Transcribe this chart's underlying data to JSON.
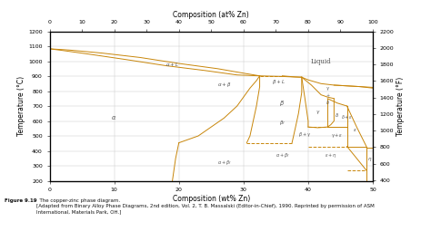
{
  "title_top": "Composition (at% Zn)",
  "xlabel": "Composition (wt% Zn)",
  "ylabel_left": "Temperature (°C)",
  "ylabel_right": "Temperature (°F)",
  "xlim": [
    0,
    50
  ],
  "ylim_C_min": 200,
  "ylim_C_max": 1200,
  "xticks_bottom": [
    0,
    10,
    20,
    30,
    40,
    50
  ],
  "xticks_top_vals": [
    0,
    5,
    10,
    15,
    20,
    25,
    30,
    35,
    40,
    45,
    50
  ],
  "xticks_top_labels": [
    "0",
    "10",
    "20",
    "30",
    "40",
    "50",
    "60",
    "70",
    "80",
    "90",
    "100"
  ],
  "yticks_left": [
    200,
    300,
    400,
    500,
    600,
    700,
    800,
    900,
    1000,
    1100,
    1200
  ],
  "yticks_right_labels": [
    400,
    600,
    800,
    1000,
    1200,
    1400,
    1600,
    1800,
    2000,
    2200
  ],
  "figure_caption_bold": "Figure 9.19",
  "figure_caption_rest": "  The copper-zinc phase diagram.\n[Adapted from Binary Alloy Phase Diagrams, 2nd edition, Vol. 2, T. B. Massalski (Editor-in-Chief), 1990. Reprinted by permission of ASM\nInternational, Materials Park, OH.]",
  "line_color": "#C8860A",
  "bg_color": "#FFFFFF",
  "grid_color": "#CCCCCC",
  "label_color": "#555555"
}
